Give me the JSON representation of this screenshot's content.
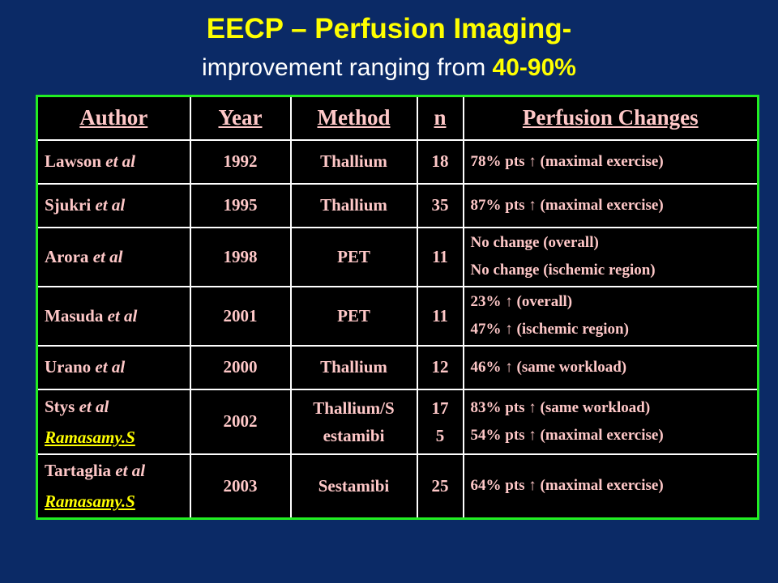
{
  "slide": {
    "title": "EECP – Perfusion Imaging-",
    "subtitle_prefix": "improvement ranging from ",
    "subtitle_highlight": "40-90%"
  },
  "table": {
    "headers": [
      "Author",
      "Year",
      "Method",
      "n",
      "Perfusion Changes"
    ],
    "rows": [
      {
        "author": "Lawson",
        "etal": "et al",
        "author2": "",
        "year": "1992",
        "method": "Thallium",
        "n": "18",
        "changes": [
          "78% pts ↑ (maximal exercise)"
        ]
      },
      {
        "author": "Sjukri",
        "etal": "et al",
        "author2": "",
        "year": "1995",
        "method": "Thallium",
        "n": "35",
        "changes": [
          "87% pts ↑ (maximal exercise)"
        ]
      },
      {
        "author": "Arora",
        "etal": "et al",
        "author2": "",
        "year": "1998",
        "method": "PET",
        "n": "11",
        "changes": [
          "No change (overall)",
          "No change (ischemic region)"
        ]
      },
      {
        "author": "Masuda",
        "etal": "et al",
        "author2": "",
        "year": "2001",
        "method": "PET",
        "n": "11",
        "changes": [
          "23% ↑ (overall)",
          "47% ↑ (ischemic region)"
        ]
      },
      {
        "author": "Urano",
        "etal": "et al",
        "author2": "",
        "year": "2000",
        "method": "Thallium",
        "n": "12",
        "changes": [
          "46% ↑ (same workload)"
        ]
      },
      {
        "author": "Stys",
        "etal": "et al",
        "author2": "Ramasamy.S",
        "year": "2002",
        "method": "Thallium/S estamibi",
        "n": "17 5",
        "changes": [
          "83% pts ↑ (same workload)",
          "54% pts ↑ (maximal exercise)"
        ]
      },
      {
        "author": "Tartaglia",
        "etal": "et al",
        "author2": "Ramasamy.S",
        "year": "2003",
        "method": "Sestamibi",
        "n": "25",
        "changes": [
          "64% pts ↑ (maximal exercise)"
        ]
      }
    ]
  },
  "colors": {
    "background": "#0b2a66",
    "title": "#ffff00",
    "table_border": "#22ee22",
    "cell_text": "#ffc8c8"
  }
}
